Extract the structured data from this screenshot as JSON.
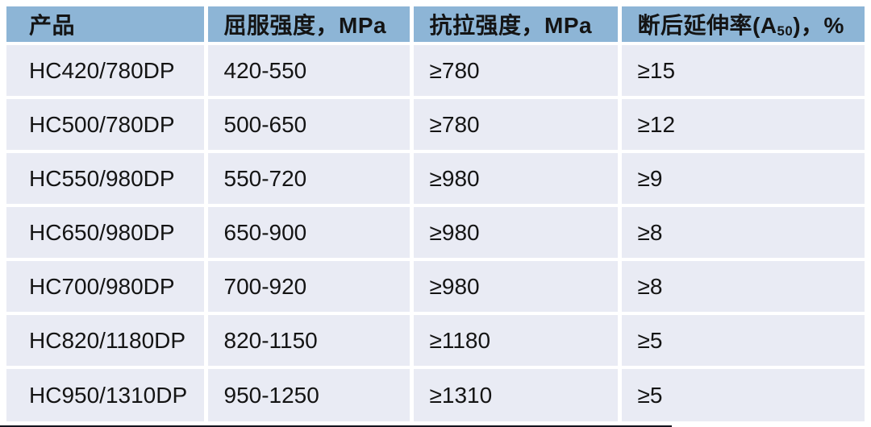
{
  "colors": {
    "header_bg": "#8DB5D6",
    "row_bg": "#E9EBF4",
    "separator": "#FFFFFF",
    "text": "#141414",
    "bottom_edge": "#14141E"
  },
  "table": {
    "columns": [
      {
        "label": "产品"
      },
      {
        "label": "屈服强度，MPa"
      },
      {
        "label": "抗拉强度，MPa"
      },
      {
        "label_prefix": "断后延伸率(A",
        "label_sub": "50",
        "label_suffix": ")，%"
      }
    ],
    "rows": [
      {
        "product": "HC420/780DP",
        "yield_strength": "420-550",
        "tensile_strength": "≥780",
        "elongation": "≥15"
      },
      {
        "product": "HC500/780DP",
        "yield_strength": "500-650",
        "tensile_strength": "≥780",
        "elongation": "≥12"
      },
      {
        "product": "HC550/980DP",
        "yield_strength": "550-720",
        "tensile_strength": "≥980",
        "elongation": "≥9"
      },
      {
        "product": "HC650/980DP",
        "yield_strength": "650-900",
        "tensile_strength": "≥980",
        "elongation": "≥8"
      },
      {
        "product": "HC700/980DP",
        "yield_strength": "700-920",
        "tensile_strength": "≥980",
        "elongation": "≥8"
      },
      {
        "product": "HC820/1180DP",
        "yield_strength": "820-1150",
        "tensile_strength": "≥1180",
        "elongation": "≥5"
      },
      {
        "product": "HC950/1310DP",
        "yield_strength": "950-1250",
        "tensile_strength": "≥1310",
        "elongation": "≥5"
      }
    ]
  }
}
